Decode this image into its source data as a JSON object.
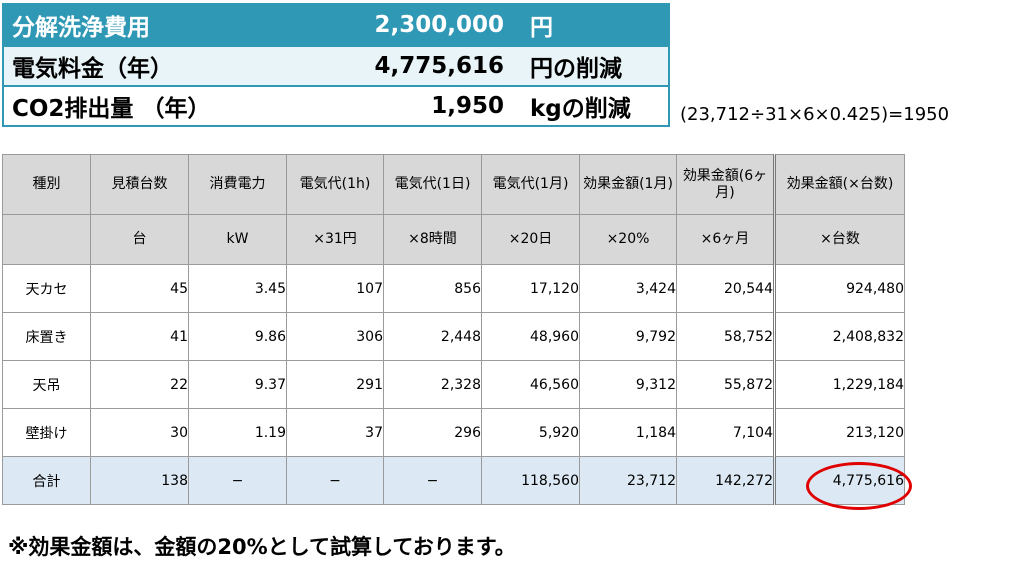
{
  "summary": {
    "rows": [
      {
        "label": "分解洗浄費用",
        "value": "2,300,000",
        "unit": "円"
      },
      {
        "label": "電気料金（年）",
        "value": "4,775,616",
        "unit": "円の削減"
      },
      {
        "label": "CO2排出量 （年）",
        "value": "1,950",
        "unit": "kgの削減"
      }
    ],
    "formula": "(23,712÷31×6×0.425)=1950"
  },
  "table": {
    "headers1": [
      "種別",
      "見積台数",
      "消費電力",
      "電気代(1h)",
      "電気代(1日)",
      "電気代(1月)",
      "効果金額(1月)",
      "効果金額(6ヶ月)",
      "効果金額(×台数)"
    ],
    "headers2": [
      "",
      "台",
      "kW",
      "×31円",
      "×8時間",
      "×20日",
      "×20%",
      "×6ヶ月",
      "×台数"
    ],
    "rows": [
      [
        "天カセ",
        "45",
        "3.45",
        "107",
        "856",
        "17,120",
        "3,424",
        "20,544",
        "924,480"
      ],
      [
        "床置き",
        "41",
        "9.86",
        "306",
        "2,448",
        "48,960",
        "9,792",
        "58,752",
        "2,408,832"
      ],
      [
        "天吊",
        "22",
        "9.37",
        "291",
        "2,328",
        "46,560",
        "9,312",
        "55,872",
        "1,229,184"
      ],
      [
        "壁掛け",
        "30",
        "1.19",
        "37",
        "296",
        "5,920",
        "1,184",
        "7,104",
        "213,120"
      ]
    ],
    "total": [
      "合計",
      "138",
      "−",
      "−",
      "−",
      "118,560",
      "23,712",
      "142,272",
      "4,775,616"
    ]
  },
  "note": "※効果金額は、金額の20%として試算しております。",
  "colors": {
    "header_bar": "#2f98b5",
    "highlight_circle": "#e00000",
    "total_row_bg": "#dce8f3",
    "table_header_bg": "#d8d8d8"
  }
}
